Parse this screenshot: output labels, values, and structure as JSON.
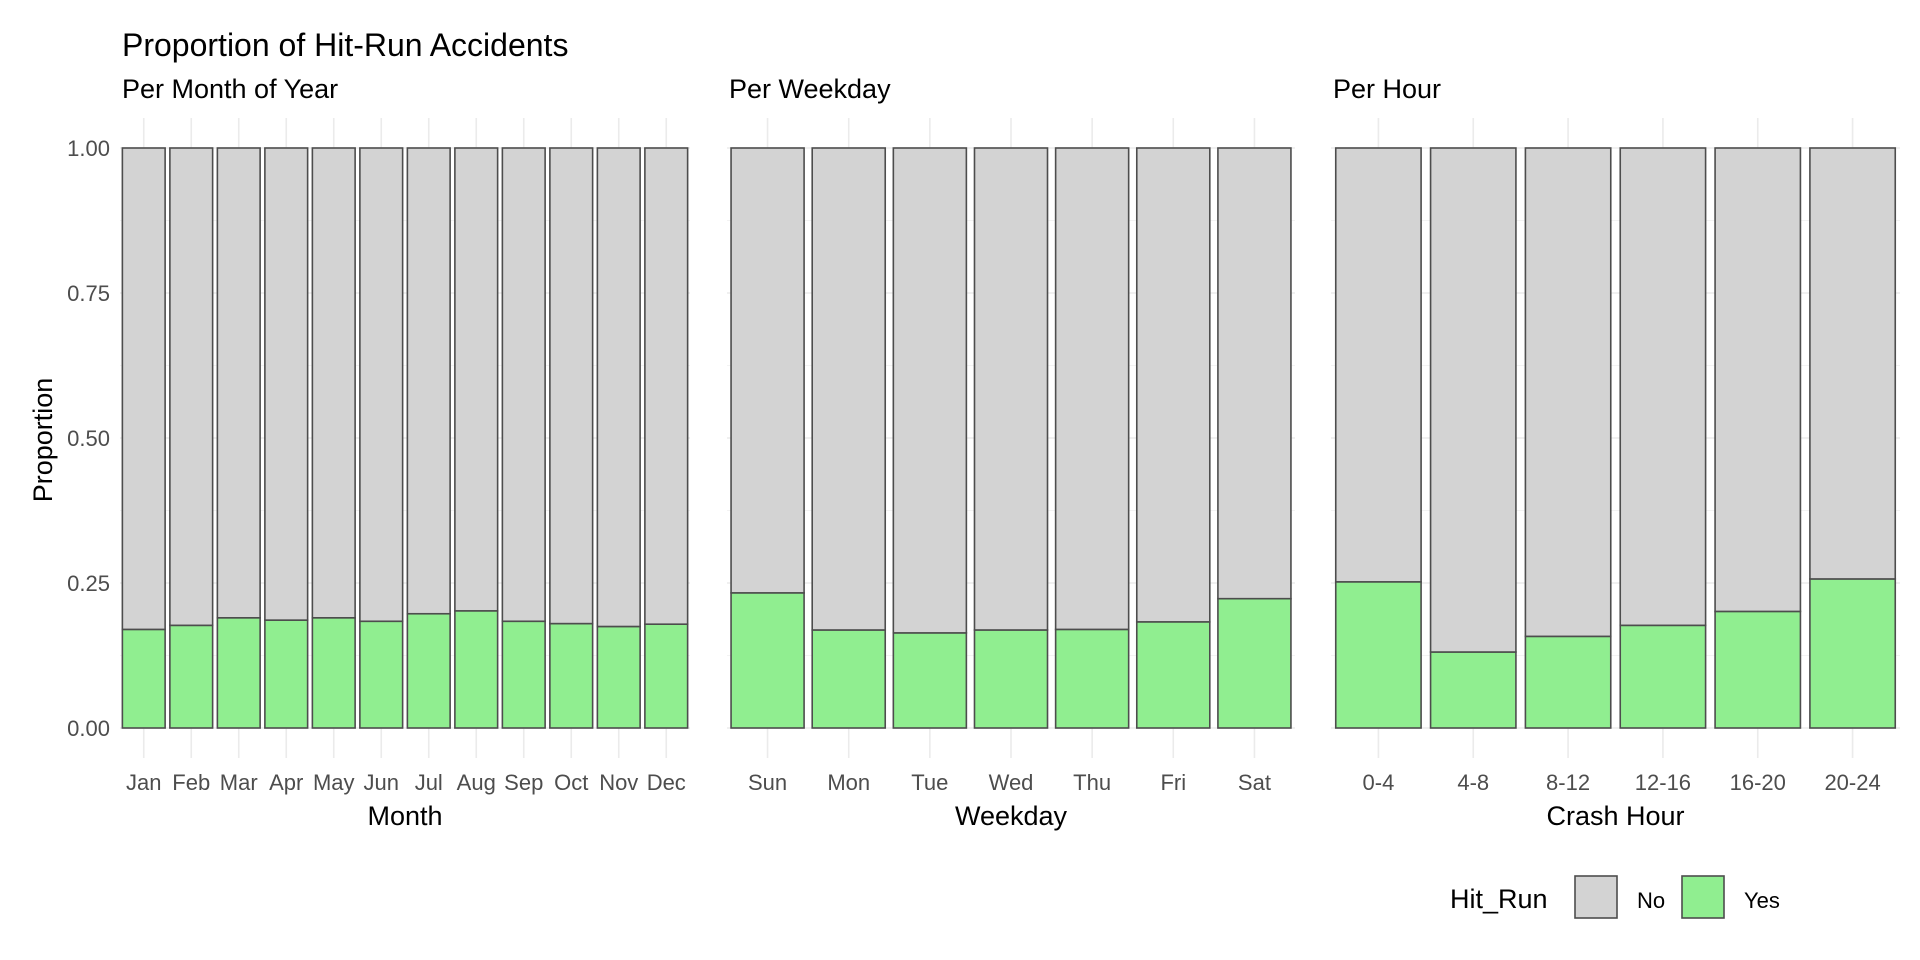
{
  "chart_data": {
    "type": "bar",
    "stacked": true,
    "normalized": true,
    "title": "Proportion of Hit-Run Accidents",
    "ylabel": "Proportion",
    "ylim": [
      0,
      1
    ],
    "yticks": [
      "0.00",
      "0.25",
      "0.50",
      "0.75",
      "1.00"
    ],
    "legend": {
      "title": "Hit_Run",
      "position": "bottom-right",
      "entries": [
        {
          "label": "No",
          "color": "#d3d3d3"
        },
        {
          "label": "Yes",
          "color": "#90ee90"
        }
      ]
    },
    "panels": [
      {
        "subtitle": "Per Month of Year",
        "xlabel": "Month",
        "categories": [
          "Jan",
          "Feb",
          "Mar",
          "Apr",
          "May",
          "Jun",
          "Jul",
          "Aug",
          "Sep",
          "Oct",
          "Nov",
          "Dec"
        ],
        "series": [
          {
            "name": "Yes",
            "values": [
              0.17,
              0.177,
              0.19,
              0.186,
              0.19,
              0.184,
              0.197,
              0.202,
              0.184,
              0.18,
              0.175,
              0.179
            ]
          },
          {
            "name": "No",
            "values": [
              0.83,
              0.823,
              0.81,
              0.814,
              0.81,
              0.816,
              0.803,
              0.798,
              0.816,
              0.82,
              0.825,
              0.821
            ]
          }
        ]
      },
      {
        "subtitle": "Per Weekday",
        "xlabel": "Weekday",
        "categories": [
          "Sun",
          "Mon",
          "Tue",
          "Wed",
          "Thu",
          "Fri",
          "Sat"
        ],
        "series": [
          {
            "name": "Yes",
            "values": [
              0.233,
              0.169,
              0.164,
              0.169,
              0.17,
              0.183,
              0.223
            ]
          },
          {
            "name": "No",
            "values": [
              0.767,
              0.831,
              0.836,
              0.831,
              0.83,
              0.817,
              0.777
            ]
          }
        ]
      },
      {
        "subtitle": "Per Hour",
        "xlabel": "Crash Hour",
        "categories": [
          "0-4",
          "4-8",
          "8-12",
          "12-16",
          "16-20",
          "20-24"
        ],
        "series": [
          {
            "name": "Yes",
            "values": [
              0.252,
              0.131,
              0.158,
              0.177,
              0.201,
              0.257
            ]
          },
          {
            "name": "No",
            "values": [
              0.748,
              0.869,
              0.842,
              0.823,
              0.799,
              0.743
            ]
          }
        ]
      }
    ]
  }
}
